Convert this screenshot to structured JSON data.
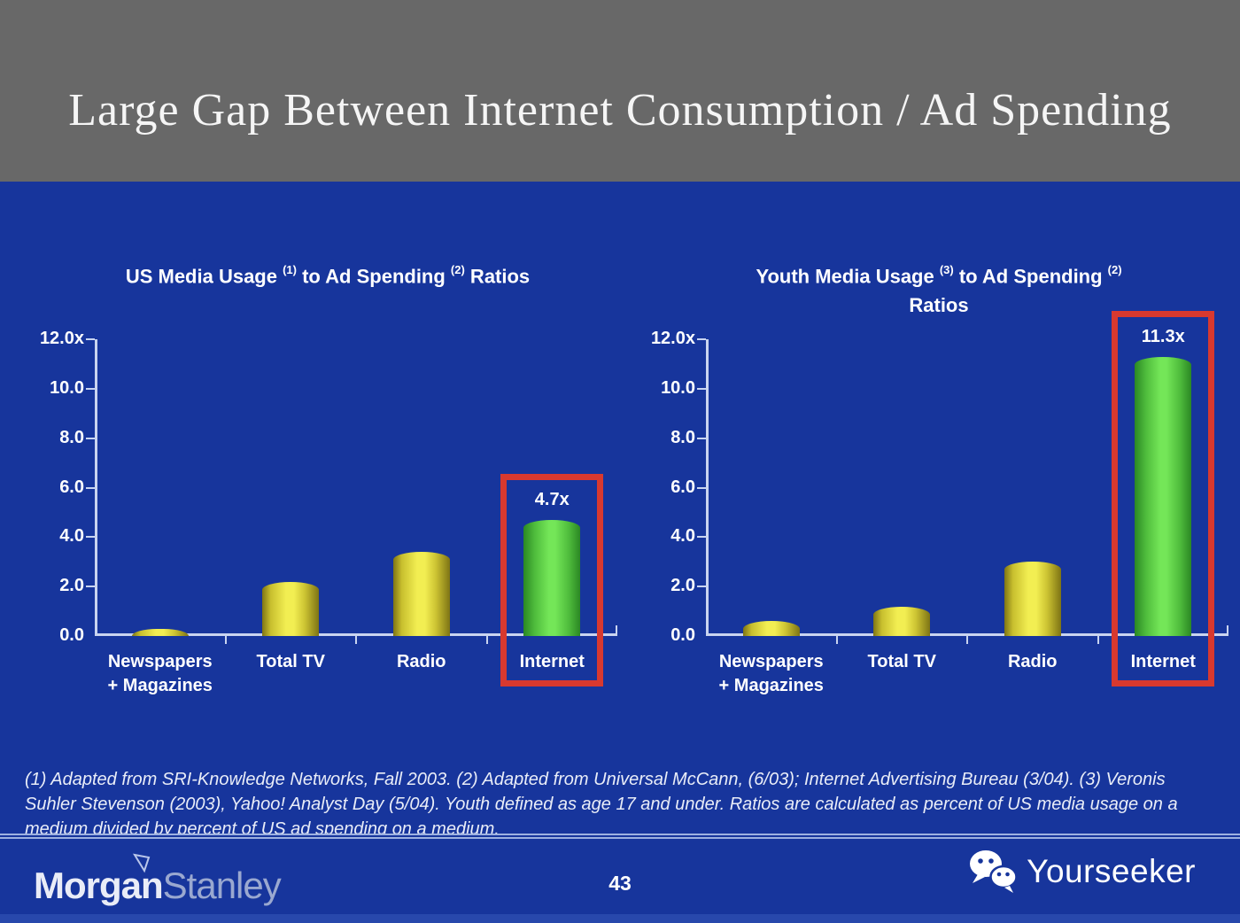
{
  "slide": {
    "title": "Large Gap Between Internet Consumption / Ad Spending",
    "page_number": "43"
  },
  "chart_data": [
    {
      "type": "bar",
      "title": "US Media Usage (1) to Ad Spending (2) Ratios",
      "title_segments": [
        {
          "text": "US Media Usage "
        },
        {
          "sup": "(1)"
        },
        {
          "text": " to Ad Spending "
        },
        {
          "sup": "(2)"
        },
        {
          "text": " Ratios"
        }
      ],
      "title_line2": "",
      "categories": [
        "Newspapers\n+ Magazines",
        "Total TV",
        "Radio",
        "Internet"
      ],
      "values": [
        0.3,
        2.2,
        3.4,
        4.7
      ],
      "bar_colors": [
        "yellow",
        "yellow",
        "yellow",
        "green"
      ],
      "y_ticks": [
        "12.0x",
        "10.0",
        "8.0",
        "6.0",
        "4.0",
        "2.0",
        "0.0"
      ],
      "ylim": [
        0,
        12
      ],
      "xlabel": "",
      "ylabel": "",
      "grid": false,
      "legend": "none",
      "highlight": {
        "index": 3,
        "label": "4.7x",
        "box_color": "#d8392f"
      }
    },
    {
      "type": "bar",
      "title": "Youth Media Usage (3) to Ad Spending (2) Ratios",
      "title_segments": [
        {
          "text": "Youth Media Usage "
        },
        {
          "sup": "(3)"
        },
        {
          "text": " to Ad Spending "
        },
        {
          "sup": "(2)"
        }
      ],
      "title_line2": "Ratios",
      "categories": [
        "Newspapers\n+ Magazines",
        "Total TV",
        "Radio",
        "Internet"
      ],
      "values": [
        0.6,
        1.2,
        3.0,
        11.3
      ],
      "bar_colors": [
        "yellow",
        "yellow",
        "yellow",
        "green"
      ],
      "y_ticks": [
        "12.0x",
        "10.0",
        "8.0",
        "6.0",
        "4.0",
        "2.0",
        "0.0"
      ],
      "ylim": [
        0,
        12
      ],
      "xlabel": "",
      "ylabel": "",
      "grid": false,
      "legend": "none",
      "highlight": {
        "index": 3,
        "label": "11.3x",
        "box_color": "#d8392f"
      }
    }
  ],
  "footnote": "(1) Adapted from SRI-Knowledge Networks, Fall 2003.  (2) Adapted from Universal McCann, (6/03); Internet Advertising Bureau (3/04). (3) Veronis Suhler Stevenson (2003), Yahoo! Analyst Day (5/04).  Youth defined as age 17 and under.  Ratios are calculated as percent of US media usage on a medium divided by percent of US ad spending on a medium.",
  "footer": {
    "morgan": "Morgan",
    "stanley": "Stanley",
    "brand": "Yourseeker"
  },
  "colors": {
    "background_blue": "#17359c",
    "header_gray": "#686868",
    "bar_yellow": "#f2ee52",
    "bar_yellow_edge": "#7e7414",
    "bar_green": "#74e658",
    "bar_green_edge": "#2b8824",
    "highlight_red": "#d8392f",
    "axis": "#c9d4f0"
  }
}
